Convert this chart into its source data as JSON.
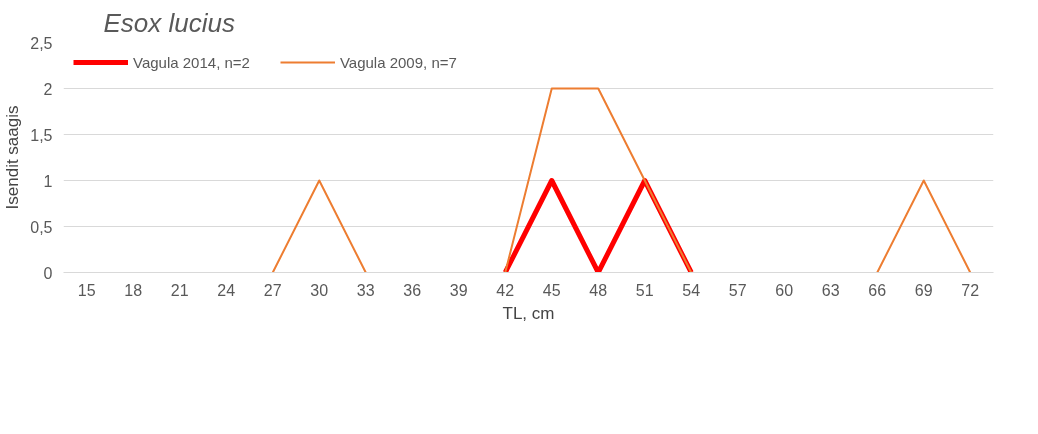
{
  "chart_data": {
    "type": "line",
    "title": "Esox lucius",
    "xlabel": "TL, cm",
    "ylabel": "Isendit saagis",
    "categories": [
      "15",
      "18",
      "21",
      "24",
      "27",
      "30",
      "33",
      "36",
      "39",
      "42",
      "45",
      "48",
      "51",
      "54",
      "57",
      "60",
      "63",
      "66",
      "69",
      "72"
    ],
    "series": [
      {
        "name": "Vagula 2014, n=2",
        "color": "#ff0000",
        "values": [
          null,
          null,
          null,
          null,
          null,
          null,
          null,
          null,
          null,
          0,
          1,
          0,
          1,
          0,
          null,
          null,
          null,
          null,
          null,
          null
        ]
      },
      {
        "name": "Vagula 2009, n=7",
        "color": "#ed7d31",
        "values": [
          null,
          null,
          null,
          null,
          0,
          1,
          0,
          null,
          null,
          0,
          2,
          2,
          1,
          0,
          null,
          null,
          null,
          0,
          1,
          0
        ]
      }
    ],
    "ylim": [
      0,
      2.5
    ],
    "yticks": [
      0,
      {
        "value": 0.5,
        "label": "0,5"
      },
      1,
      {
        "value": 1.5,
        "label": "1,5"
      },
      2,
      {
        "value": 2.5,
        "label": "2,5"
      }
    ],
    "grid": "y",
    "legend": "top left",
    "marker": "none",
    "line_style": "solid"
  }
}
